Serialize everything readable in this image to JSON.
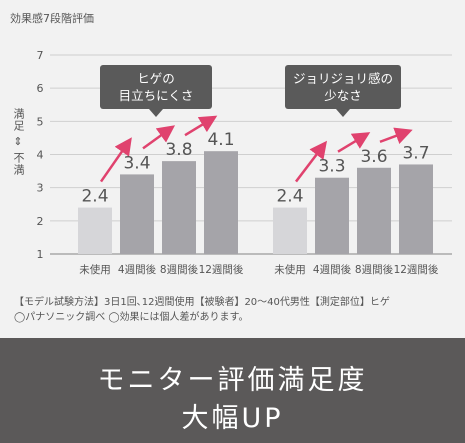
{
  "y_title": "効果感7段階評価",
  "y_side": {
    "top": "満足",
    "bottom": "不満"
  },
  "chart_data": [
    {
      "type": "bar",
      "title": "ヒゲの\n目立ちにくさ",
      "categories": [
        "未使用",
        "4週間後",
        "8週間後",
        "12週間後"
      ],
      "values": [
        2.4,
        3.4,
        3.8,
        4.1
      ],
      "ylim": [
        1,
        7
      ],
      "yticks": [
        1,
        2,
        3,
        4,
        5,
        6,
        7
      ]
    },
    {
      "type": "bar",
      "title": "ジョリジョリ感の\n少なさ",
      "categories": [
        "未使用",
        "4週間後",
        "8週間後",
        "12週間後"
      ],
      "values": [
        2.4,
        3.3,
        3.6,
        3.7
      ],
      "ylim": [
        1,
        7
      ],
      "yticks": [
        1,
        2,
        3,
        4,
        5,
        6,
        7
      ]
    }
  ],
  "colors": {
    "baseline_bar": "#d6d6d9",
    "bar": "#a5a4a9",
    "arrow": "#e0426e",
    "callout": "#5a5a5a",
    "background": "#f2f2f2"
  },
  "footnote": {
    "line1": "【モデル試験方法】3日1回､12週間使用【被験者】20～40代男性【測定部位】ヒゲ",
    "line2": "◯パナソニック調べ ◯効果には個人差があります。"
  },
  "banner": {
    "line1": "モニター評価満足度",
    "line2": "大幅UP"
  }
}
